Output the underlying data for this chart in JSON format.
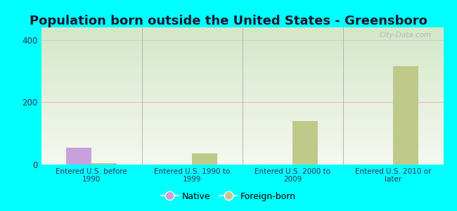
{
  "title": "Population born outside the United States - Greensboro",
  "categories": [
    "Entered U.S. before\n1990",
    "Entered U.S. 1990 to\n1999",
    "Entered U.S. 2000 to\n2009",
    "Entered U.S. 2010 or\nlater"
  ],
  "native_values": [
    55,
    0,
    0,
    0
  ],
  "foreign_born_values": [
    5,
    35,
    140,
    315
  ],
  "native_color": "#c9a0dc",
  "foreign_born_color": "#bfc98a",
  "background_color": "#00ffff",
  "ylim": [
    0,
    440
  ],
  "yticks": [
    0,
    200,
    400
  ],
  "bar_width": 0.25,
  "title_fontsize": 13,
  "watermark": "City-Data.com"
}
